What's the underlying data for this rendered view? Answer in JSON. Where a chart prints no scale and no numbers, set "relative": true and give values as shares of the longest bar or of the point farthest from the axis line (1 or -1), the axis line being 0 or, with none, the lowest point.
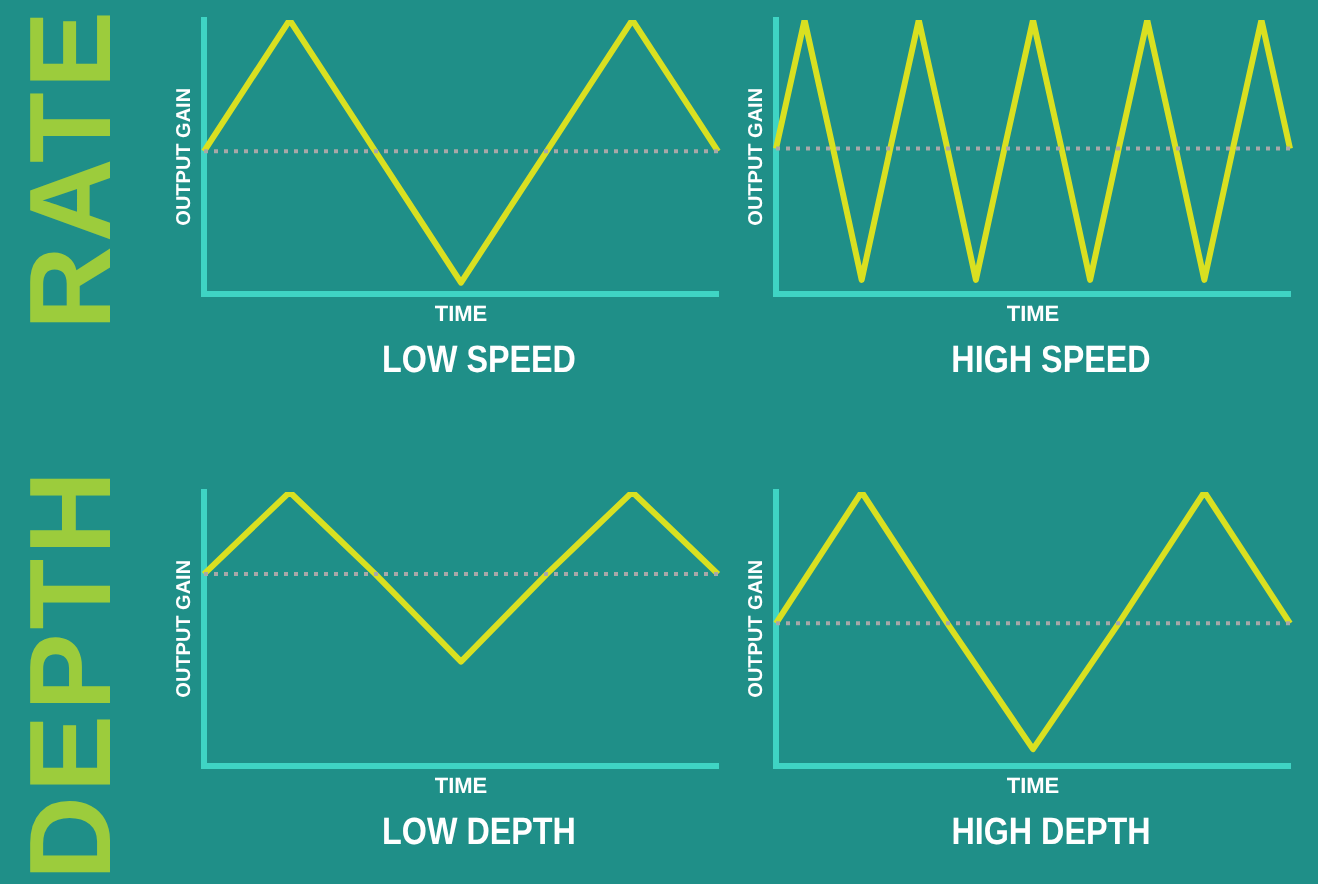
{
  "chart_data": [
    {
      "type": "line",
      "title": "LOW SPEED",
      "xlabel": "TIME",
      "ylabel": "OUTPUT GAIN",
      "annotations": [
        "RATE"
      ],
      "relative": true,
      "legend": false,
      "grid": false,
      "marker": "none",
      "line_style": "solid",
      "categories": [
        null,
        null,
        null,
        null,
        null,
        null,
        null,
        null,
        null,
        null,
        null,
        null,
        null
      ],
      "series": [
        {
          "color": "#d9e021",
          "values": [
            0.52,
            0.76,
            1,
            0.76,
            0.52,
            0.28,
            0.04,
            0.28,
            0.52,
            0.76,
            1,
            0.76,
            0.52
          ]
        }
      ],
      "ref_lines": [
        {
          "axis": "y",
          "value": 0.52,
          "color": "#a8a8a8",
          "line_style": "dotted"
        }
      ]
    },
    {
      "type": "line",
      "title": "HIGH SPEED",
      "xlabel": "TIME",
      "ylabel": "OUTPUT GAIN",
      "relative": true,
      "legend": false,
      "grid": false,
      "marker": "none",
      "line_style": "solid",
      "categories": [
        null,
        null,
        null,
        null,
        null,
        null,
        null,
        null,
        null,
        null,
        null,
        null,
        null,
        null,
        null,
        null,
        null,
        null,
        null
      ],
      "series": [
        {
          "color": "#d9e021",
          "values": [
            0.53,
            1,
            0.53,
            0.05,
            0.53,
            1,
            0.53,
            0.05,
            0.53,
            1,
            0.53,
            0.05,
            0.53,
            1,
            0.53,
            0.05,
            0.53,
            1,
            0.53
          ]
        }
      ],
      "ref_lines": [
        {
          "axis": "y",
          "value": 0.53,
          "color": "#a8a8a8",
          "line_style": "dotted"
        }
      ]
    },
    {
      "type": "line",
      "title": "LOW DEPTH",
      "xlabel": "TIME",
      "ylabel": "OUTPUT GAIN",
      "annotations": [
        "DEPTH"
      ],
      "relative": true,
      "legend": false,
      "grid": false,
      "marker": "none",
      "line_style": "solid",
      "categories": [
        null,
        null,
        null,
        null,
        null,
        null,
        null,
        null,
        null,
        null,
        null,
        null,
        null
      ],
      "series": [
        {
          "color": "#d9e021",
          "values": [
            0.7,
            0.85,
            1,
            0.85,
            0.7,
            0.54,
            0.38,
            0.54,
            0.7,
            0.85,
            1,
            0.85,
            0.7
          ]
        }
      ],
      "ref_lines": [
        {
          "axis": "y",
          "value": 0.7,
          "color": "#a8a8a8",
          "line_style": "dotted"
        }
      ]
    },
    {
      "type": "line",
      "title": "HIGH DEPTH",
      "xlabel": "TIME",
      "ylabel": "OUTPUT GAIN",
      "relative": true,
      "legend": false,
      "grid": false,
      "marker": "none",
      "line_style": "solid",
      "categories": [
        null,
        null,
        null,
        null,
        null,
        null,
        null,
        null,
        null,
        null,
        null,
        null,
        null
      ],
      "series": [
        {
          "color": "#d9e021",
          "values": [
            0.52,
            0.76,
            1,
            0.76,
            0.52,
            0.29,
            0.06,
            0.29,
            0.52,
            0.76,
            1,
            0.76,
            0.52
          ]
        }
      ],
      "ref_lines": [
        {
          "axis": "y",
          "value": 0.52,
          "color": "#a8a8a8",
          "line_style": "dotted"
        }
      ]
    }
  ]
}
